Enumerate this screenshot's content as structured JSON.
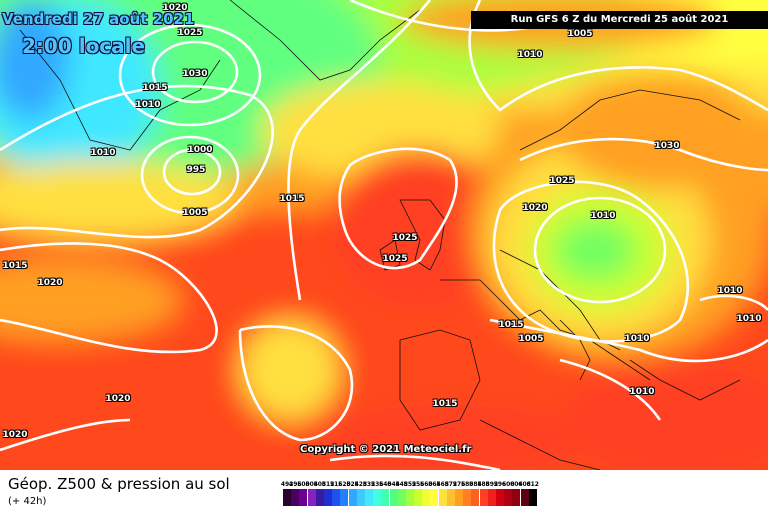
{
  "header": {
    "date": "Vendredi 27 août 2021",
    "local_time": "2:00 locale",
    "run": "Run GFS 6 Z du Mercredi 25 août 2021"
  },
  "copyright": "Copyright © 2021 Meteociel.fr",
  "footer": {
    "title": "Géop. Z500 & pression au sol",
    "subtitle": "(+ 42h)"
  },
  "legend": {
    "labels": [
      "492",
      "496",
      "500",
      "504",
      "508",
      "512",
      "516",
      "520",
      "524",
      "528",
      "532",
      "536",
      "540",
      "544",
      "548",
      "552",
      "556",
      "560",
      "564",
      "568",
      "572",
      "576",
      "580",
      "584",
      "588",
      "592",
      "596",
      "600",
      "604",
      "608",
      "612"
    ],
    "colors": [
      "#2b0030",
      "#4b0060",
      "#6a0090",
      "#8a20c0",
      "#3a1aa0",
      "#2030d0",
      "#2050f0",
      "#2080ff",
      "#30a8ff",
      "#40c8ff",
      "#40e8ff",
      "#40ffe0",
      "#40ffb0",
      "#50ff80",
      "#70ff60",
      "#a0ff40",
      "#c8ff30",
      "#f0ff30",
      "#ffff40",
      "#ffe040",
      "#ffc030",
      "#ffa020",
      "#ff8020",
      "#ff6020",
      "#ff4020",
      "#f02020",
      "#d00010",
      "#b00010",
      "#900010",
      "#600010",
      "#000000"
    ]
  },
  "isobars": [
    "1020",
    "1025",
    "1030",
    "1015",
    "1010",
    "1000",
    "995",
    "1005",
    "1015",
    "1010",
    "1015",
    "1020",
    "1025",
    "1025",
    "1005",
    "1010",
    "1030",
    "1025",
    "1020",
    "1010",
    "1015",
    "1005",
    "1010",
    "1010",
    "1010",
    "1020",
    "1020",
    "1015",
    "1010"
  ]
}
